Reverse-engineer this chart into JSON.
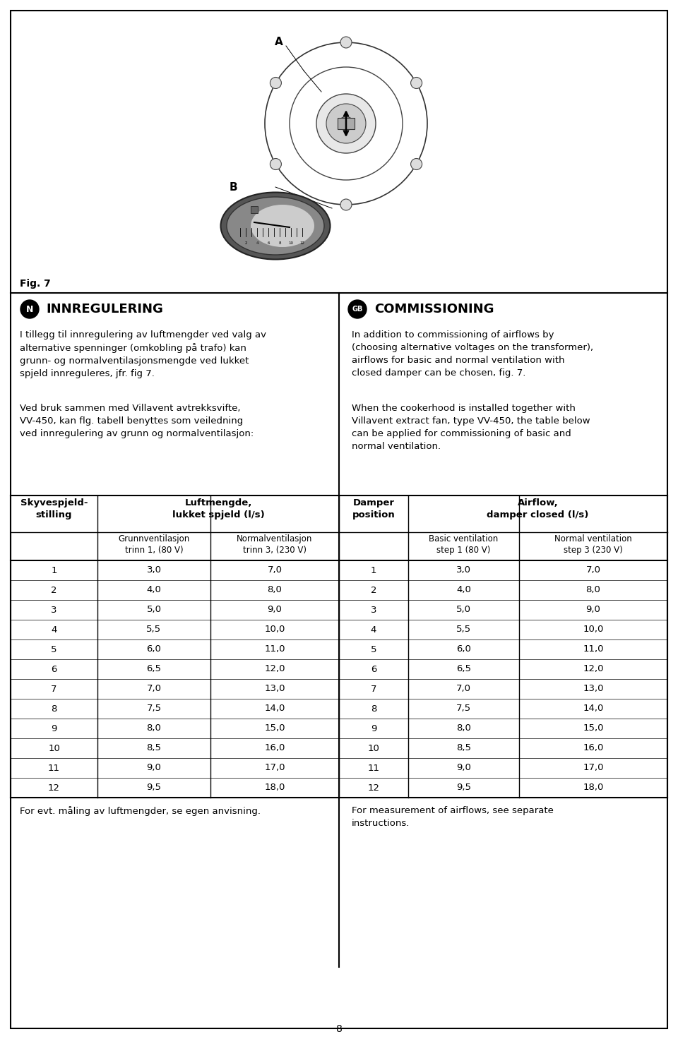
{
  "page_bg": "#ffffff",
  "page_number": "8",
  "fig_label": "Fig. 7",
  "sections": {
    "left_title": "INNREGULERING",
    "right_title": "COMMISSIONING",
    "left_badge": "N",
    "right_badge": "GB",
    "left_para1": "I tillegg til innregulering av luftmengder ved valg av\nalternative spenninger (omkobling på trafo) kan\ngrunn- og normalventilasjonsmengde ved lukket\nspjeld innreguleres, jfr. fig 7.",
    "left_para2": "Ved bruk sammen med Villavent avtrekksvifte,\nVV-450, kan flg. tabell benyttes som veiledning\nved innregulering av grunn og normalventilasjon:",
    "right_para1": "In addition to commissioning of airflows by\n(choosing alternative voltages on the transformer),\nairflows for basic and normal ventilation with\nclosed damper can be chosen, fig. 7.",
    "right_para2": "When the cookerhood is installed together with\nVillavent extract fan, type VV-450, the table below\ncan be applied for commissioning of basic and\nnormal ventilation."
  },
  "table": {
    "rows": [
      [
        1,
        "3,0",
        "7,0",
        1,
        "3,0",
        "7,0"
      ],
      [
        2,
        "4,0",
        "8,0",
        2,
        "4,0",
        "8,0"
      ],
      [
        3,
        "5,0",
        "9,0",
        3,
        "5,0",
        "9,0"
      ],
      [
        4,
        "5,5",
        "10,0",
        4,
        "5,5",
        "10,0"
      ],
      [
        5,
        "6,0",
        "11,0",
        5,
        "6,0",
        "11,0"
      ],
      [
        6,
        "6,5",
        "12,0",
        6,
        "6,5",
        "12,0"
      ],
      [
        7,
        "7,0",
        "13,0",
        7,
        "7,0",
        "13,0"
      ],
      [
        8,
        "7,5",
        "14,0",
        8,
        "7,5",
        "14,0"
      ],
      [
        9,
        "8,0",
        "15,0",
        9,
        "8,0",
        "15,0"
      ],
      [
        10,
        "8,5",
        "16,0",
        10,
        "8,5",
        "16,0"
      ],
      [
        11,
        "9,0",
        "17,0",
        11,
        "9,0",
        "17,0"
      ],
      [
        12,
        "9,5",
        "18,0",
        12,
        "9,5",
        "18,0"
      ]
    ]
  },
  "footer_left": "For evt. måling av luftmengder, se egen anvisning.",
  "footer_right": "For measurement of airflows, see separate\ninstructions."
}
